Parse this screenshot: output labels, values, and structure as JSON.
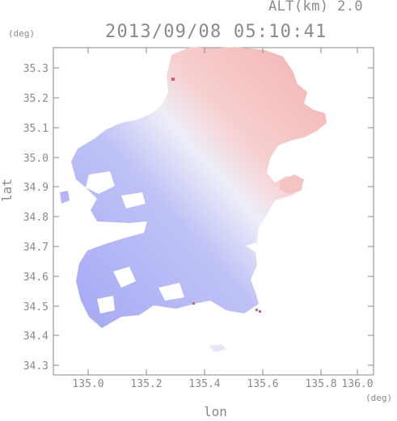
{
  "header": {
    "altitude_label": "ALT(km) 2.0",
    "timestamp": "2013/09/08 05:10:41"
  },
  "axes": {
    "y_unit": "(deg)",
    "x_unit": "(deg)",
    "x_title": "lon",
    "y_title": "lat",
    "x_ticks": [
      "135.0",
      "135.2",
      "135.4",
      "135.6",
      "135.8",
      "136.0"
    ],
    "y_ticks": [
      "34.3",
      "34.4",
      "34.5",
      "34.6",
      "34.7",
      "34.8",
      "34.9",
      "35.0",
      "35.1",
      "35.2",
      "35.3"
    ]
  },
  "colors": {
    "negative": "#a8aaf4",
    "neutral": "#eeeef8",
    "positive": "#f5b7b7",
    "frame": "#8a8a8a"
  }
}
